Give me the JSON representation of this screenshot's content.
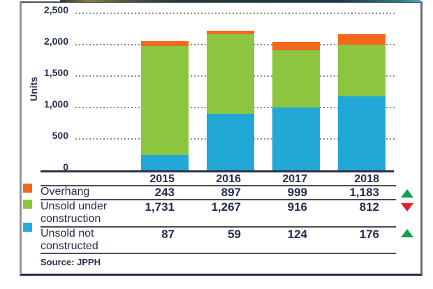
{
  "colors": {
    "bar_blue": "#21a8d6",
    "bar_green": "#8cc63f",
    "bar_orange": "#f2691d",
    "legend_overhang": "#f2691d",
    "legend_under": "#8cc63f",
    "legend_not": "#29abd9",
    "trend_up": "#13a04e",
    "trend_down": "#ec1c2e",
    "text": "#272d4e"
  },
  "chart_data": {
    "type": "bar",
    "subtype": "stacked",
    "ylabel": "Units",
    "ylim": [
      0,
      2500
    ],
    "y_ticks": [
      "2,500",
      "2,000",
      "1,500",
      "1,000",
      "500",
      "0"
    ],
    "grid": "dotted horizontal gridlines every 500 units",
    "legend_position": "table below chart",
    "categories": [
      "2015",
      "2016",
      "2017",
      "2018"
    ],
    "series": [
      {
        "name": "Overhang",
        "values": [
          243,
          897,
          999,
          1183
        ],
        "bar_color": "#21a8d6",
        "legend_color": "#f2691d",
        "trend_arrow": "up"
      },
      {
        "name": "Unsold under construction",
        "values": [
          1731,
          1267,
          916,
          812
        ],
        "bar_color": "#8cc63f",
        "legend_color": "#8cc63f",
        "trend_arrow": "down"
      },
      {
        "name": "Unsold not constructed",
        "values": [
          87,
          59,
          124,
          176
        ],
        "bar_color": "#f2691d",
        "legend_color": "#29abd9",
        "trend_arrow": "up"
      }
    ],
    "stack_bottom_to_top": [
      "Overhang",
      "Unsold under construction",
      "Unsold not constructed"
    ]
  },
  "table": {
    "col_headers": [
      "2015",
      "2016",
      "2017",
      "2018"
    ],
    "rows": [
      {
        "label": "Overhang",
        "values": [
          "243",
          "897",
          "999",
          "1,183"
        ],
        "trend": "up"
      },
      {
        "label": "Unsold under construction",
        "values": [
          "1,731",
          "1,267",
          "916",
          "812"
        ],
        "trend": "down"
      },
      {
        "label": "Unsold not constructed",
        "values": [
          "87",
          "59",
          "124",
          "176"
        ],
        "trend": "up"
      }
    ]
  },
  "source": "Source: JPPH"
}
